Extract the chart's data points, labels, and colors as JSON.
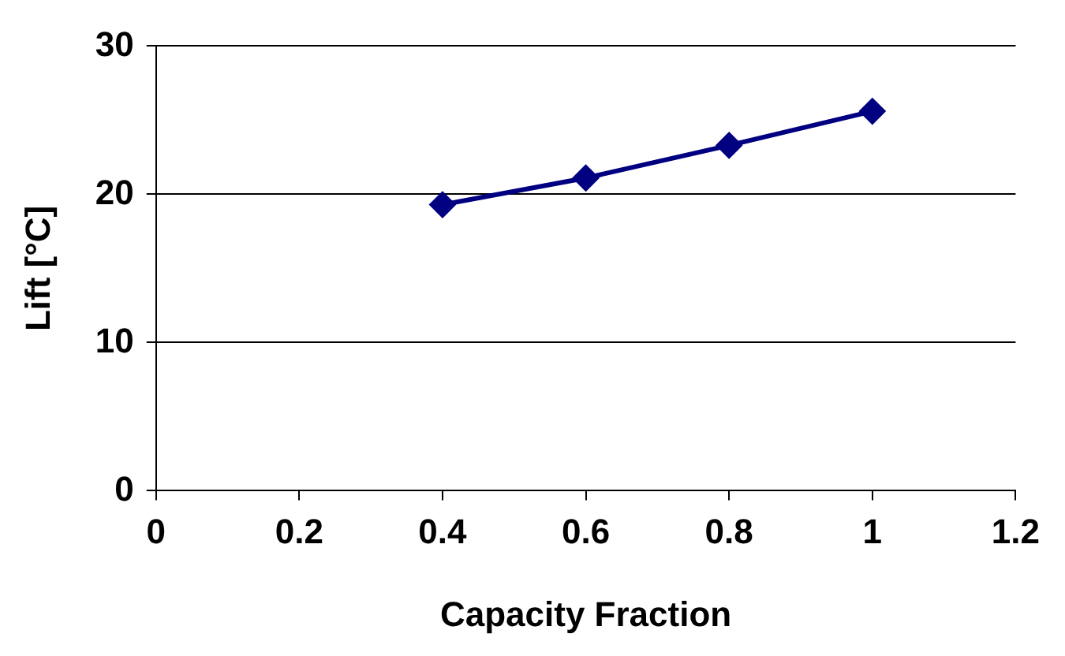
{
  "chart_data": {
    "type": "line",
    "xlabel": "Capacity Fraction",
    "ylabel": "Lift [°C]",
    "x": [
      0.4,
      0.6,
      0.8,
      1
    ],
    "series": [
      {
        "color": "#000080",
        "values": [
          19.3,
          21.1,
          23.3,
          25.6
        ]
      }
    ],
    "xlim": [
      0,
      1.2
    ],
    "xticks": [
      0,
      0.2,
      0.4,
      0.6,
      0.8,
      1,
      1.2
    ],
    "ylim": [
      0,
      30
    ],
    "yticks": [
      0,
      10,
      20,
      30
    ],
    "grid": "y",
    "legend": false,
    "marker": "diamond",
    "line_style": "solid"
  }
}
